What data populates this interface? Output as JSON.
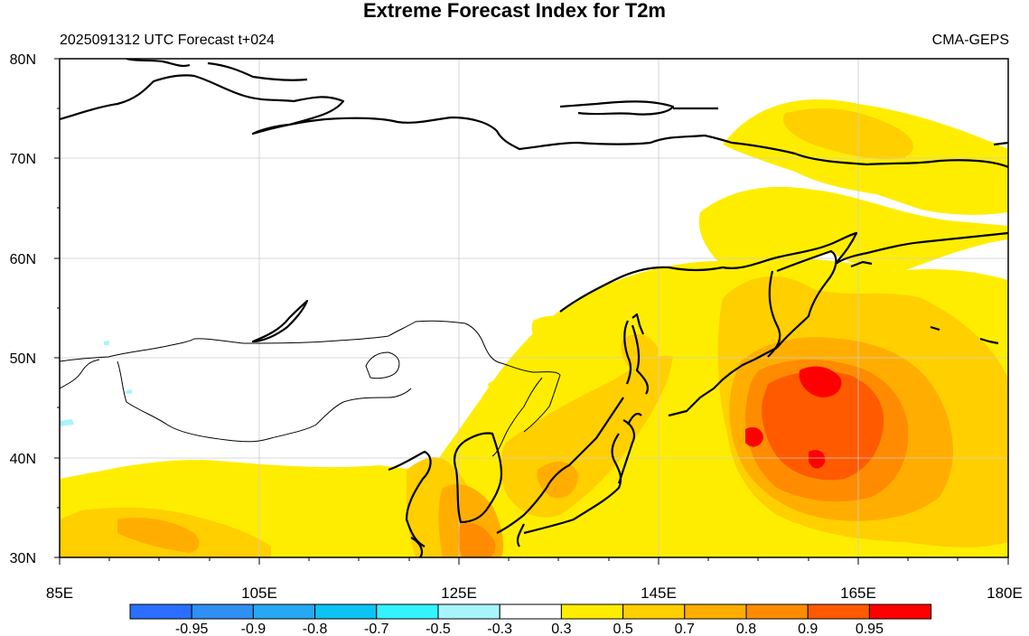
{
  "title": "Extreme Forecast Index for T2m",
  "subtitle_left": "2025091312 UTC Forecast t+024",
  "subtitle_right": "CMA-GEPS",
  "lat_labels": [
    "80N",
    "70N",
    "60N",
    "50N",
    "40N",
    "30N"
  ],
  "lon_labels": [
    "85E",
    "105E",
    "125E",
    "145E",
    "165E",
    "180E"
  ],
  "colorbar": {
    "labels": [
      "-0.95",
      "-0.9",
      "-0.8",
      "-0.7",
      "-0.5",
      "-0.3",
      "0.3",
      "0.5",
      "0.7",
      "0.8",
      "0.9",
      "0.95"
    ],
    "colors": [
      "#2a6fff",
      "#2f8ff3",
      "#27a8f2",
      "#0bc4f5",
      "#33f3ff",
      "#a8f4fb",
      "#ffffff",
      "#ffed00",
      "#ffcf00",
      "#ffae00",
      "#ff8c00",
      "#ff5a00",
      "#ff0000"
    ]
  },
  "map": {
    "lat_range": [
      30,
      80
    ],
    "lon_range": [
      85,
      180
    ],
    "grid": true,
    "fill_colors": {
      "efi_0_3": "#ffed00",
      "efi_0_5": "#ffcf00",
      "efi_0_7": "#ffae00",
      "efi_0_8": "#ff8c00",
      "efi_0_9": "#ff5a00",
      "efi_0_95": "#ff0000",
      "neg_weak": "#a8f4fb"
    }
  }
}
